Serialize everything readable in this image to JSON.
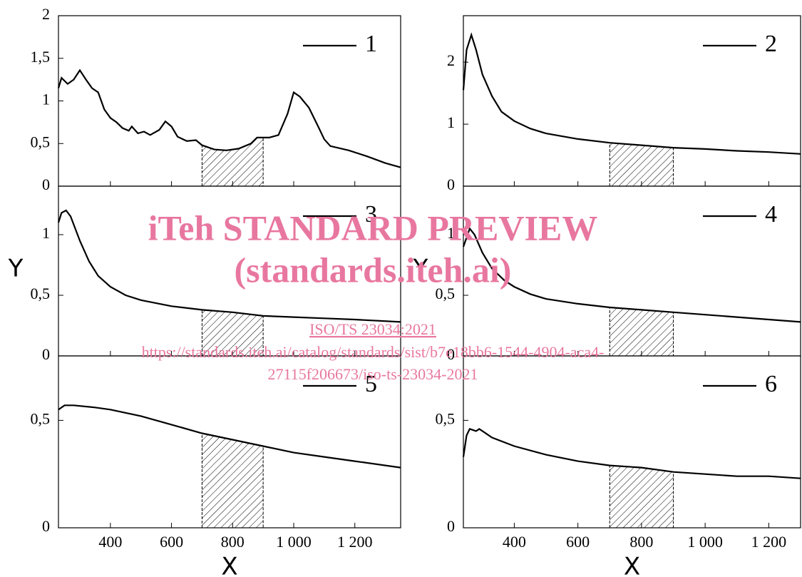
{
  "chart_data": [
    {
      "type": "line",
      "x": [
        230,
        240,
        260,
        280,
        300,
        320,
        340,
        360,
        380,
        400,
        420,
        440,
        460,
        470,
        490,
        510,
        530,
        560,
        580,
        600,
        620,
        650,
        680,
        700,
        740,
        780,
        820,
        860,
        880,
        920,
        950,
        980,
        1000,
        1020,
        1050,
        1080,
        1100,
        1120,
        1180,
        1240,
        1300,
        1350
      ],
      "series": [
        {
          "name": "1",
          "color": "#000000",
          "values": [
            1.15,
            1.27,
            1.2,
            1.25,
            1.36,
            1.25,
            1.15,
            1.1,
            0.9,
            0.8,
            0.75,
            0.68,
            0.65,
            0.7,
            0.62,
            0.64,
            0.6,
            0.66,
            0.76,
            0.7,
            0.58,
            0.53,
            0.54,
            0.48,
            0.43,
            0.42,
            0.44,
            0.5,
            0.57,
            0.57,
            0.6,
            0.85,
            1.1,
            1.05,
            0.92,
            0.7,
            0.55,
            0.47,
            0.42,
            0.35,
            0.27,
            0.22
          ]
        }
      ],
      "xlim": [
        230,
        1350
      ],
      "xticks": [
        400,
        600,
        800,
        1000,
        1200
      ],
      "ylim": [
        0,
        2
      ],
      "yticks": [
        0,
        {
          "value": 0.5,
          "label": "0,5"
        },
        1,
        {
          "value": 1.5,
          "label": "1,5"
        },
        2
      ],
      "highlight_span": [
        700,
        900
      ],
      "legend": "upper right"
    },
    {
      "type": "line",
      "x": [
        240,
        250,
        265,
        280,
        300,
        330,
        360,
        400,
        450,
        500,
        600,
        700,
        800,
        900,
        1000,
        1100,
        1200,
        1300
      ],
      "series": [
        {
          "name": "2",
          "color": "#000000",
          "values": [
            1.55,
            2.2,
            2.44,
            2.2,
            1.8,
            1.45,
            1.2,
            1.05,
            0.93,
            0.85,
            0.76,
            0.7,
            0.66,
            0.62,
            0.6,
            0.57,
            0.55,
            0.52
          ]
        }
      ],
      "xlim": [
        240,
        1300
      ],
      "xticks": [
        400,
        600,
        800,
        1000,
        1200
      ],
      "ylim": [
        0,
        2.75
      ],
      "yticks": [
        0,
        1,
        2
      ],
      "highlight_span": [
        700,
        900
      ],
      "legend": "upper right"
    },
    {
      "type": "line",
      "x": [
        230,
        240,
        255,
        270,
        300,
        330,
        360,
        400,
        450,
        500,
        600,
        700,
        800,
        900,
        1000,
        1100,
        1200,
        1350
      ],
      "series": [
        {
          "name": "3",
          "color": "#000000",
          "values": [
            1.1,
            1.18,
            1.2,
            1.15,
            0.95,
            0.78,
            0.66,
            0.57,
            0.5,
            0.46,
            0.41,
            0.38,
            0.36,
            0.33,
            0.32,
            0.31,
            0.3,
            0.28
          ]
        }
      ],
      "xlim": [
        230,
        1350
      ],
      "xticks": [
        400,
        600,
        800,
        1000,
        1200
      ],
      "ylim": [
        0,
        1.4
      ],
      "yticks": [
        0,
        {
          "value": 0.5,
          "label": "0,5"
        },
        1
      ],
      "ylabel": "Y",
      "highlight_span": [
        700,
        900
      ],
      "legend": "upper right"
    },
    {
      "type": "line",
      "x": [
        240,
        260,
        275,
        300,
        330,
        370,
        400,
        450,
        500,
        600,
        700,
        800,
        900,
        1000,
        1100,
        1200,
        1300
      ],
      "series": [
        {
          "name": "4",
          "color": "#000000",
          "values": [
            0.9,
            1.05,
            1.0,
            0.85,
            0.72,
            0.62,
            0.57,
            0.51,
            0.47,
            0.43,
            0.4,
            0.38,
            0.36,
            0.34,
            0.32,
            0.3,
            0.28
          ]
        }
      ],
      "xlim": [
        240,
        1300
      ],
      "xticks": [
        400,
        600,
        800,
        1000,
        1200
      ],
      "ylim": [
        0,
        1.4
      ],
      "yticks": [
        0,
        {
          "value": 0.5,
          "label": "0,5"
        },
        1
      ],
      "ylabel": "Y",
      "highlight_span": [
        700,
        900
      ],
      "legend": "upper right"
    },
    {
      "type": "line",
      "x": [
        230,
        250,
        280,
        350,
        400,
        500,
        600,
        700,
        800,
        900,
        1000,
        1100,
        1200,
        1350
      ],
      "series": [
        {
          "name": "5",
          "color": "#000000",
          "values": [
            0.55,
            0.57,
            0.57,
            0.56,
            0.55,
            0.52,
            0.48,
            0.44,
            0.41,
            0.38,
            0.35,
            0.33,
            0.31,
            0.28
          ]
        }
      ],
      "xlim": [
        230,
        1350
      ],
      "xticks": [
        400,
        600,
        800,
        {
          "value": 1000,
          "label": "1 000"
        },
        {
          "value": 1200,
          "label": "1 200"
        }
      ],
      "ylim": [
        0,
        0.8
      ],
      "yticks": [
        0,
        {
          "value": 0.5,
          "label": "0,5"
        }
      ],
      "xlabel": "X",
      "highlight_span": [
        700,
        900
      ],
      "legend": "upper right"
    },
    {
      "type": "line",
      "x": [
        240,
        250,
        260,
        280,
        290,
        300,
        330,
        400,
        500,
        600,
        700,
        800,
        900,
        1000,
        1100,
        1200,
        1300
      ],
      "series": [
        {
          "name": "6",
          "color": "#000000",
          "values": [
            0.33,
            0.43,
            0.46,
            0.45,
            0.46,
            0.45,
            0.42,
            0.38,
            0.34,
            0.31,
            0.29,
            0.28,
            0.26,
            0.25,
            0.24,
            0.24,
            0.23
          ]
        }
      ],
      "xlim": [
        240,
        1300
      ],
      "xticks": [
        400,
        600,
        800,
        {
          "value": 1000,
          "label": "1 000"
        },
        {
          "value": 1200,
          "label": "1 200"
        }
      ],
      "ylim": [
        0,
        0.8
      ],
      "yticks": [
        0,
        {
          "value": 0.5,
          "label": "0,5"
        }
      ],
      "xlabel": "X",
      "highlight_span": [
        700,
        900
      ],
      "legend": "upper right"
    }
  ],
  "watermark": {
    "title": "iTeh STANDARD PREVIEW",
    "subtitle": "(standards.iteh.ai)",
    "document": "ISO/TS 23034:2021",
    "url_1": "https://standards.iteh.ai/catalog/standards/sist/b7e18bb6-1544-4904-aca4-",
    "url_2": "27115f206673/iso-ts-23034-2021"
  }
}
